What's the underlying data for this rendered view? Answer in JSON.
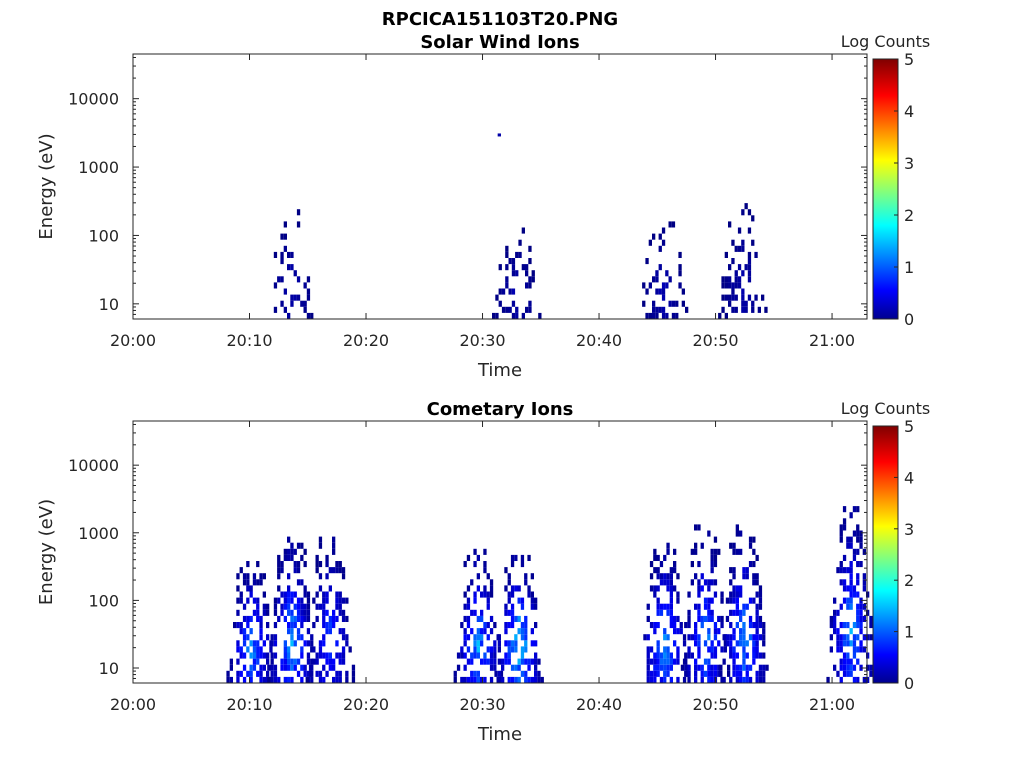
{
  "figure_title": "RPCICA151103T20.PNG",
  "chart_data": [
    {
      "type": "heatmap",
      "title": "Solar Wind Ions",
      "xlabel": "Time",
      "ylabel": "Energy (eV)",
      "x_ticks": [
        "20:00",
        "20:10",
        "20:20",
        "20:30",
        "20:40",
        "20:50",
        "21:00"
      ],
      "x_range": [
        "20:00",
        "21:03"
      ],
      "y_scale": "log",
      "y_ticks": [
        "10",
        "100",
        "1000",
        "10000"
      ],
      "y_range": [
        6,
        45000
      ],
      "colorbar": {
        "label": "Log Counts",
        "range": [
          0,
          5
        ],
        "ticks": [
          "0",
          "1",
          "2",
          "3",
          "4",
          "5"
        ],
        "colormap": "jet"
      },
      "bursts": [
        {
          "center": "20:13.5",
          "emin": 6,
          "emax": 280,
          "peak_log_counts": 0.3,
          "density": 0.35
        },
        {
          "center": "20:31.3",
          "emin": 2800,
          "emax": 3100,
          "peak_log_counts": 0.2,
          "density": 1.0,
          "single_point": true
        },
        {
          "center": "20:32.8",
          "emin": 6,
          "emax": 130,
          "peak_log_counts": 0.3,
          "density": 0.45
        },
        {
          "center": "20:45.4",
          "emin": 6,
          "emax": 230,
          "peak_log_counts": 0.3,
          "density": 0.4
        },
        {
          "center": "20:52.2",
          "emin": 6,
          "emax": 300,
          "peak_log_counts": 0.3,
          "density": 0.4
        }
      ]
    },
    {
      "type": "heatmap",
      "title": "Cometary Ions",
      "xlabel": "Time",
      "ylabel": "Energy (eV)",
      "x_ticks": [
        "20:00",
        "20:10",
        "20:20",
        "20:30",
        "20:40",
        "20:50",
        "21:00"
      ],
      "x_range": [
        "20:00",
        "21:03"
      ],
      "y_scale": "log",
      "y_ticks": [
        "10",
        "100",
        "1000",
        "10000"
      ],
      "y_range": [
        6,
        45000
      ],
      "colorbar": {
        "label": "Log Counts",
        "range": [
          0,
          5
        ],
        "ticks": [
          "0",
          "1",
          "2",
          "3",
          "4",
          "5"
        ],
        "colormap": "jet"
      },
      "bursts": [
        {
          "center": "20:10.0",
          "emin": 6,
          "emax": 450,
          "peak_log_counts": 1.6,
          "density": 0.7
        },
        {
          "center": "20:13.5",
          "emin": 6,
          "emax": 1000,
          "peak_log_counts": 1.7,
          "density": 0.75
        },
        {
          "center": "20:16.8",
          "emin": 6,
          "emax": 1050,
          "peak_log_counts": 1.2,
          "density": 0.65
        },
        {
          "center": "20:29.5",
          "emin": 6,
          "emax": 600,
          "peak_log_counts": 1.7,
          "density": 0.7
        },
        {
          "center": "20:33.0",
          "emin": 6,
          "emax": 600,
          "peak_log_counts": 2.0,
          "density": 0.75
        },
        {
          "center": "20:45.5",
          "emin": 6,
          "emax": 800,
          "peak_log_counts": 1.7,
          "density": 0.7
        },
        {
          "center": "20:49.0",
          "emin": 6,
          "emax": 1300,
          "peak_log_counts": 1.5,
          "density": 0.7
        },
        {
          "center": "20:52.3",
          "emin": 6,
          "emax": 1300,
          "peak_log_counts": 1.6,
          "density": 0.7
        },
        {
          "center": "21:01.5",
          "emin": 6,
          "emax": 2800,
          "peak_log_counts": 1.6,
          "density": 0.65
        }
      ]
    }
  ]
}
